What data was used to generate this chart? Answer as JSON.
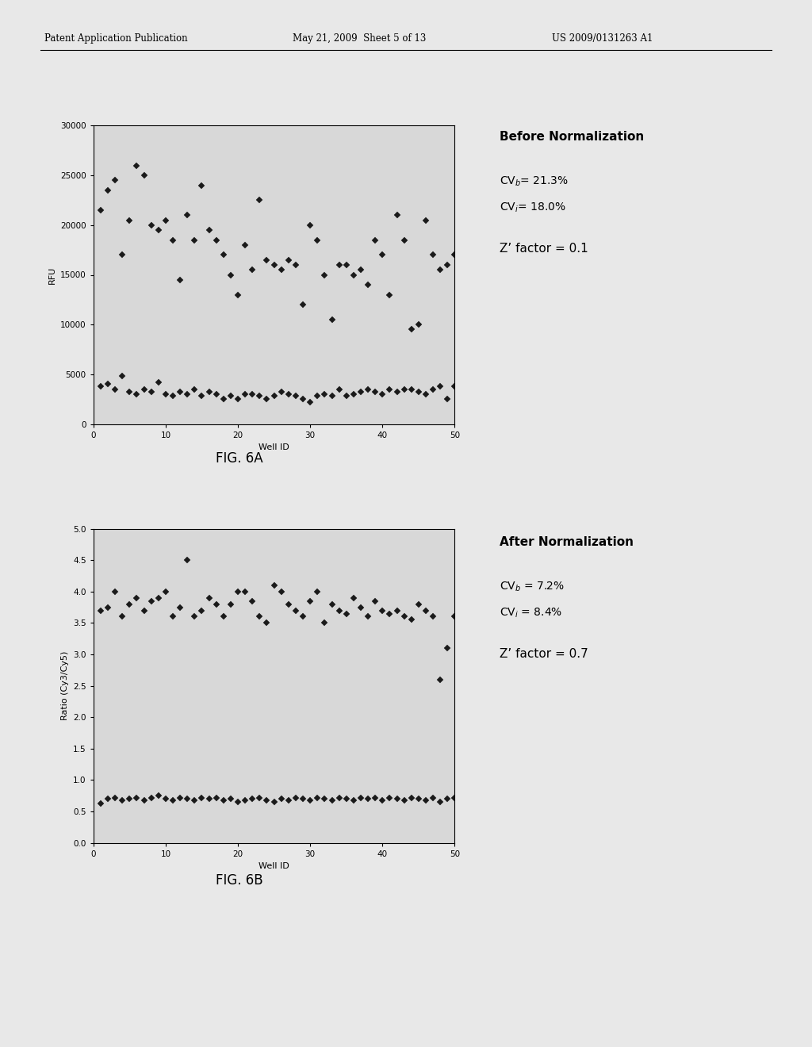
{
  "header_left": "Patent Application Publication",
  "header_mid": "May 21, 2009  Sheet 5 of 13",
  "header_right": "US 2009/0131263 A1",
  "fig6a": {
    "title": "FIG. 6A",
    "xlabel": "Well ID",
    "ylabel": "RFU",
    "xlim": [
      0,
      50
    ],
    "ylim": [
      0,
      30000
    ],
    "yticks": [
      0,
      5000,
      10000,
      15000,
      20000,
      25000,
      30000
    ],
    "xticks": [
      0,
      10,
      20,
      30,
      40,
      50
    ],
    "annotation_title": "Before Normalization",
    "cv_b": "CV$_b$= 21.3%",
    "cv_i": "CV$_i$= 18.0%",
    "z_factor": "Z’ factor = 0.1",
    "series1_x": [
      1,
      2,
      3,
      4,
      5,
      6,
      7,
      8,
      9,
      10,
      11,
      12,
      13,
      14,
      15,
      16,
      17,
      18,
      19,
      20,
      21,
      22,
      23,
      24,
      25,
      26,
      27,
      28,
      29,
      30,
      31,
      32,
      33,
      34,
      35,
      36,
      37,
      38,
      39,
      40,
      41,
      42,
      43,
      44,
      45,
      46,
      47,
      48,
      49,
      50
    ],
    "series1_y": [
      21500,
      23500,
      24500,
      17000,
      20500,
      26000,
      25000,
      20000,
      19500,
      20500,
      18500,
      14500,
      21000,
      18500,
      24000,
      19500,
      18500,
      17000,
      15000,
      13000,
      18000,
      15500,
      22500,
      16500,
      16000,
      15500,
      16500,
      16000,
      12000,
      20000,
      18500,
      15000,
      10500,
      16000,
      16000,
      15000,
      15500,
      14000,
      18500,
      17000,
      13000,
      21000,
      18500,
      9500,
      10000,
      20500,
      17000,
      15500,
      16000,
      17000
    ],
    "series2_x": [
      1,
      2,
      3,
      4,
      5,
      6,
      7,
      8,
      9,
      10,
      11,
      12,
      13,
      14,
      15,
      16,
      17,
      18,
      19,
      20,
      21,
      22,
      23,
      24,
      25,
      26,
      27,
      28,
      29,
      30,
      31,
      32,
      33,
      34,
      35,
      36,
      37,
      38,
      39,
      40,
      41,
      42,
      43,
      44,
      45,
      46,
      47,
      48,
      49,
      50
    ],
    "series2_y": [
      3800,
      4000,
      3500,
      4800,
      3200,
      3000,
      3500,
      3200,
      4200,
      3000,
      2800,
      3200,
      3000,
      3500,
      2800,
      3200,
      3000,
      2500,
      2800,
      2500,
      3000,
      3000,
      2800,
      2500,
      2800,
      3200,
      3000,
      2800,
      2500,
      2200,
      2800,
      3000,
      2800,
      3500,
      2800,
      3000,
      3200,
      3500,
      3200,
      3000,
      3500,
      3200,
      3500,
      3500,
      3200,
      3000,
      3500,
      3800,
      2500,
      3800
    ]
  },
  "fig6b": {
    "title": "FIG. 6B",
    "xlabel": "Well ID",
    "ylabel": "Ratio (Cy3/Cy5)",
    "xlim": [
      0,
      50
    ],
    "ylim": [
      0.0,
      5.0
    ],
    "yticks": [
      0.0,
      0.5,
      1.0,
      1.5,
      2.0,
      2.5,
      3.0,
      3.5,
      4.0,
      4.5,
      5.0
    ],
    "xticks": [
      0,
      10,
      20,
      30,
      40,
      50
    ],
    "annotation_title": "After Normalization",
    "cv_b": "CV$_b$ = 7.2%",
    "cv_i": "CV$_i$ = 8.4%",
    "z_factor": "Z’ factor = 0.7",
    "series1_x": [
      1,
      2,
      3,
      4,
      5,
      6,
      7,
      8,
      9,
      10,
      11,
      12,
      13,
      14,
      15,
      16,
      17,
      18,
      19,
      20,
      21,
      22,
      23,
      24,
      25,
      26,
      27,
      28,
      29,
      30,
      31,
      32,
      33,
      34,
      35,
      36,
      37,
      38,
      39,
      40,
      41,
      42,
      43,
      44,
      45,
      46,
      47,
      48,
      49,
      50
    ],
    "series1_y": [
      3.7,
      3.75,
      4.0,
      3.6,
      3.8,
      3.9,
      3.7,
      3.85,
      3.9,
      4.0,
      3.6,
      3.75,
      4.5,
      3.6,
      3.7,
      3.9,
      3.8,
      3.6,
      3.8,
      4.0,
      4.0,
      3.85,
      3.6,
      3.5,
      4.1,
      4.0,
      3.8,
      3.7,
      3.6,
      3.85,
      4.0,
      3.5,
      3.8,
      3.7,
      3.65,
      3.9,
      3.75,
      3.6,
      3.85,
      3.7,
      3.65,
      3.7,
      3.6,
      3.55,
      3.8,
      3.7,
      3.6,
      2.6,
      3.1,
      3.6
    ],
    "series2_x": [
      1,
      2,
      3,
      4,
      5,
      6,
      7,
      8,
      9,
      10,
      11,
      12,
      13,
      14,
      15,
      16,
      17,
      18,
      19,
      20,
      21,
      22,
      23,
      24,
      25,
      26,
      27,
      28,
      29,
      30,
      31,
      32,
      33,
      34,
      35,
      36,
      37,
      38,
      39,
      40,
      41,
      42,
      43,
      44,
      45,
      46,
      47,
      48,
      49,
      50
    ],
    "series2_y": [
      0.62,
      0.7,
      0.72,
      0.68,
      0.7,
      0.72,
      0.68,
      0.72,
      0.75,
      0.7,
      0.68,
      0.72,
      0.7,
      0.68,
      0.72,
      0.7,
      0.72,
      0.68,
      0.7,
      0.65,
      0.68,
      0.7,
      0.72,
      0.68,
      0.65,
      0.7,
      0.68,
      0.72,
      0.7,
      0.68,
      0.72,
      0.7,
      0.68,
      0.72,
      0.7,
      0.68,
      0.72,
      0.7,
      0.72,
      0.68,
      0.72,
      0.7,
      0.68,
      0.72,
      0.7,
      0.68,
      0.72,
      0.65,
      0.7,
      0.72
    ]
  },
  "background_color": "#e8e8e8",
  "plot_bg": "#d8d8d8",
  "marker_color": "#1a1a1a",
  "marker": "D",
  "marker_size": 4
}
